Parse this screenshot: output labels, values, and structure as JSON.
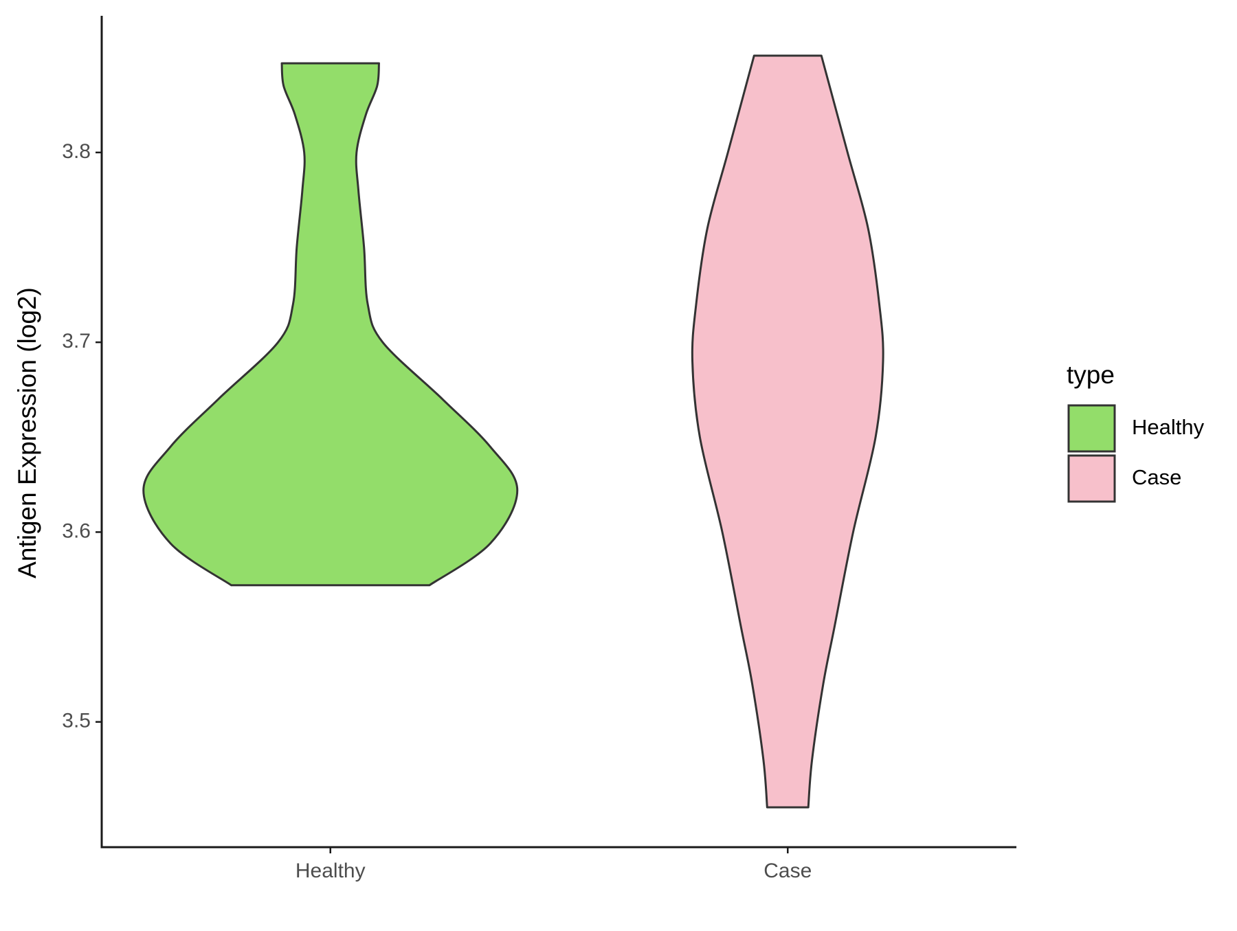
{
  "chart_data": {
    "type": "violin",
    "y_label": "Antigen Expression (log2)",
    "categories": [
      "Healthy",
      "Case"
    ],
    "legend_title": "type",
    "legend_position": "right",
    "ylim": [
      3.434,
      3.872
    ],
    "yticks": [
      3.5,
      3.6,
      3.7,
      3.8
    ],
    "series": [
      {
        "name": "Healthy",
        "color": "#93dd6a",
        "y": [
          3.572,
          3.594,
          3.622,
          3.645,
          3.67,
          3.7,
          3.72,
          3.75,
          3.78,
          3.8,
          3.82,
          3.835,
          3.847
        ],
        "density": [
          0.53,
          0.855,
          1.0,
          0.855,
          0.6,
          0.28,
          0.2,
          0.18,
          0.15,
          0.14,
          0.19,
          0.25,
          0.26
        ]
      },
      {
        "name": "Case",
        "color": "#f7c0cb",
        "y": [
          3.455,
          3.48,
          3.52,
          3.55,
          3.6,
          3.65,
          3.69,
          3.72,
          3.76,
          3.8,
          3.851
        ],
        "density": [
          0.11,
          0.13,
          0.19,
          0.25,
          0.35,
          0.47,
          0.51,
          0.49,
          0.43,
          0.32,
          0.18
        ]
      }
    ]
  }
}
